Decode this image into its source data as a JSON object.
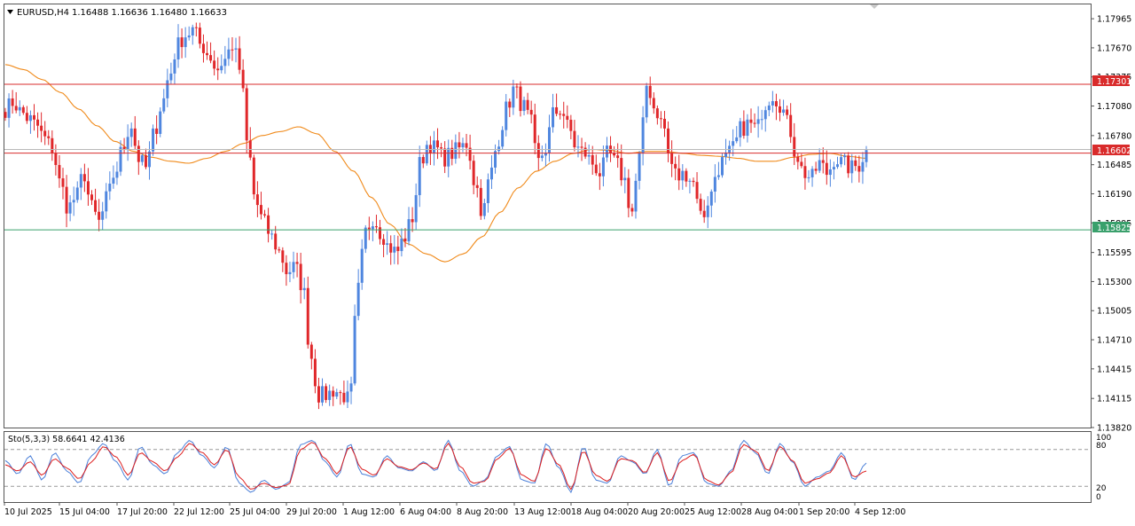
{
  "header": {
    "symbol": "EURUSD,H4",
    "ohlc": "1.16488 1.16636 1.16480 1.16633",
    "menu_icon": "triangle-down-icon"
  },
  "indicator": {
    "label": "Sto(5,3,3) 58.6641 42.4136",
    "main_color": "#4a7fd8",
    "signal_color": "#dd1e1e",
    "levels": [
      80,
      20
    ],
    "scale_labels": [
      "100",
      "80",
      "20",
      "0"
    ]
  },
  "colors": {
    "bull": "#4f86df",
    "bear": "#e0272a",
    "ma": "#f08a1a",
    "resistance": "#d92b2b",
    "support": "#3aa06c",
    "grid_bg": "#ffffff"
  },
  "price_labels": {
    "resistance": "1.17301",
    "current": "1.16602",
    "support": "1.15825"
  },
  "chart_data": {
    "type": "candlestick",
    "title": "EURUSD,H4",
    "ylim": [
      1.1382,
      1.1811
    ],
    "y_ticks": [
      "1.17965",
      "1.17670",
      "1.17375",
      "1.17080",
      "1.16780",
      "1.16485",
      "1.16190",
      "1.15895",
      "1.15595",
      "1.15300",
      "1.15005",
      "1.14710",
      "1.14415",
      "1.14115",
      "1.13820"
    ],
    "x_ticks": [
      "10 Jul 2025",
      "15 Jul 04:00",
      "17 Jul 20:00",
      "22 Jul 12:00",
      "25 Jul 04:00",
      "29 Jul 20:00",
      "1 Aug 12:00",
      "6 Aug 04:00",
      "8 Aug 20:00",
      "13 Aug 12:00",
      "18 Aug 04:00",
      "20 Aug 20:00",
      "25 Aug 12:00",
      "28 Aug 04:00",
      "1 Sep 20:00",
      "4 Sep 12:00"
    ],
    "horizontal_lines": [
      {
        "name": "resistance",
        "value": 1.17301
      },
      {
        "name": "current",
        "value": 1.16602
      },
      {
        "name": "support",
        "value": 1.15825
      }
    ],
    "close_anchors": [
      1.1705,
      1.1712,
      1.1702,
      1.1695,
      1.1688,
      1.1675,
      1.1665,
      1.163,
      1.1605,
      1.1615,
      1.164,
      1.1605,
      1.159,
      1.1615,
      1.164,
      1.1665,
      1.169,
      1.1655,
      1.1645,
      1.168,
      1.171,
      1.174,
      1.177,
      1.178,
      1.1785,
      1.177,
      1.176,
      1.1745,
      1.1755,
      1.177,
      1.1745,
      1.1665,
      1.161,
      1.159,
      1.1575,
      1.156,
      1.154,
      1.1545,
      1.1525,
      1.1455,
      1.1415,
      1.1415,
      1.142,
      1.1415,
      1.141,
      1.152,
      1.158,
      1.1595,
      1.158,
      1.1565,
      1.156,
      1.1575,
      1.1595,
      1.165,
      1.167,
      1.1665,
      1.1655,
      1.166,
      1.1665,
      1.167,
      1.163,
      1.16,
      1.164,
      1.1675,
      1.1705,
      1.1725,
      1.171,
      1.1695,
      1.165,
      1.1665,
      1.17,
      1.1705,
      1.1685,
      1.1665,
      1.166,
      1.165,
      1.164,
      1.166,
      1.165,
      1.1635,
      1.16,
      1.1655,
      1.173,
      1.1705,
      1.169,
      1.165,
      1.1635,
      1.164,
      1.163,
      1.1595,
      1.1615,
      1.1645,
      1.1655,
      1.1665,
      1.1685,
      1.169,
      1.1685,
      1.171,
      1.172,
      1.171,
      1.169,
      1.166,
      1.164,
      1.1635,
      1.165,
      1.164,
      1.1655,
      1.165,
      1.1645,
      1.1648,
      1.1663
    ],
    "ma_anchors": [
      1.175,
      1.1745,
      1.1735,
      1.1722,
      1.1705,
      1.1688,
      1.1672,
      1.1662,
      1.1656,
      1.1652,
      1.165,
      1.1655,
      1.1662,
      1.167,
      1.1678,
      1.1682,
      1.1687,
      1.168,
      1.1662,
      1.1642,
      1.1615,
      1.1588,
      1.1568,
      1.1558,
      1.155,
      1.1558,
      1.1575,
      1.16,
      1.1625,
      1.1642,
      1.1652,
      1.166,
      1.1664,
      1.1663,
      1.166,
      1.1662,
      1.1662,
      1.166,
      1.1658,
      1.1657,
      1.1655,
      1.1652,
      1.1652,
      1.1656,
      1.1659,
      1.166,
      1.1657,
      1.1655
    ],
    "stoch_main_anchors": [
      62,
      40,
      70,
      30,
      75,
      45,
      25,
      70,
      90,
      60,
      30,
      85,
      55,
      40,
      75,
      95,
      70,
      50,
      85,
      25,
      10,
      30,
      15,
      25,
      88,
      95,
      60,
      35,
      90,
      40,
      35,
      70,
      50,
      45,
      60,
      45,
      95,
      45,
      20,
      30,
      70,
      85,
      30,
      25,
      90,
      50,
      10,
      85,
      30,
      25,
      70,
      60,
      40,
      80,
      20,
      70,
      75,
      25,
      20,
      45,
      95,
      75,
      40,
      90,
      60,
      20,
      35,
      45,
      75,
      30,
      58
    ],
    "stoch_signal_anchors": [
      55,
      45,
      60,
      38,
      65,
      50,
      32,
      60,
      85,
      68,
      38,
      75,
      60,
      45,
      68,
      90,
      75,
      55,
      80,
      35,
      15,
      25,
      18,
      22,
      80,
      92,
      65,
      40,
      85,
      48,
      38,
      65,
      52,
      47,
      58,
      48,
      90,
      52,
      25,
      28,
      65,
      82,
      38,
      28,
      82,
      55,
      15,
      78,
      38,
      28,
      65,
      62,
      42,
      75,
      28,
      62,
      72,
      30,
      22,
      42,
      88,
      78,
      45,
      85,
      62,
      25,
      32,
      42,
      70,
      35,
      45
    ]
  }
}
